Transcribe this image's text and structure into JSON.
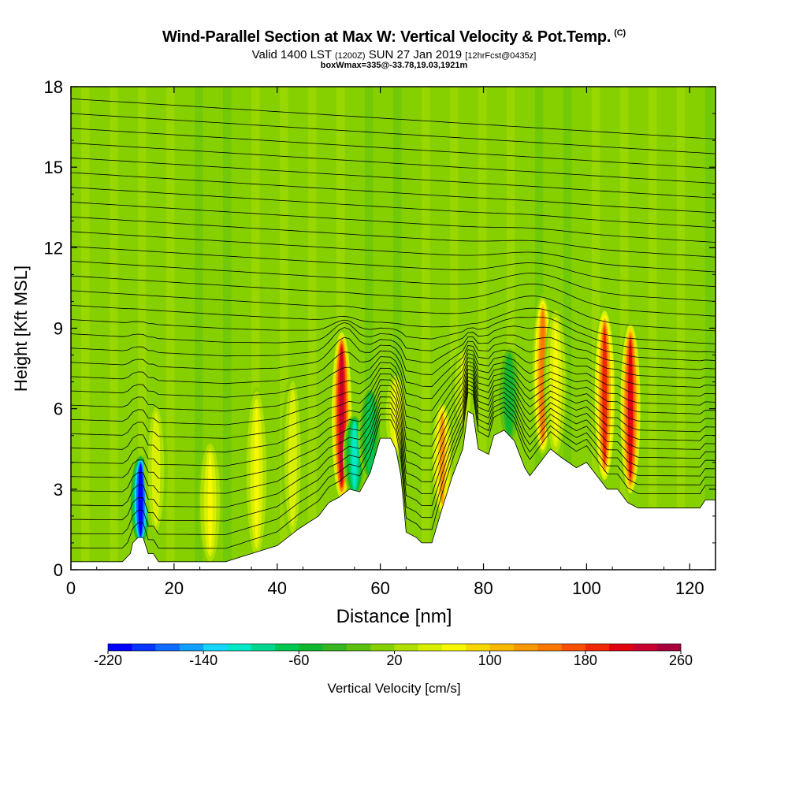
{
  "header": {
    "title": "Wind-Parallel Section at Max W: Vertical Velocity & Pot.Temp.",
    "title_tag": "(C)",
    "subtitle_pre": "Valid 1400 LST",
    "subtitle_mid": "(1200Z)",
    "subtitle_post": "SUN 27 Jan 2019",
    "subtitle_tag": "[12hrFcst@0435z]",
    "note": "boxWmax=335@-33.78,19.03,1921m"
  },
  "chart_data": {
    "type": "heatmap",
    "xlabel": "Distance [nm]",
    "ylabel": "Height [Kft MSL]",
    "xlim": [
      0,
      125
    ],
    "ylim": [
      0,
      18
    ],
    "x_ticks": [
      0,
      20,
      40,
      60,
      80,
      100,
      120
    ],
    "y_ticks": [
      0,
      3,
      6,
      9,
      12,
      15,
      18
    ],
    "colorbar": {
      "label": "Vertical Velocity [cm/s]",
      "min": -220,
      "max": 260,
      "step": 20,
      "tick_labels": [
        "-220",
        "-140",
        "-60",
        "20",
        "100",
        "180",
        "260"
      ],
      "tick_values": [
        -220,
        -140,
        -60,
        20,
        100,
        180,
        260
      ],
      "colors": [
        "#0000ff",
        "#0a35ff",
        "#0f6bff",
        "#12a0ff",
        "#14d6ff",
        "#00e8c8",
        "#00d890",
        "#00c850",
        "#10b830",
        "#35b520",
        "#5cc010",
        "#86d000",
        "#b0e000",
        "#d8f000",
        "#f8f800",
        "#f8d800",
        "#f8b800",
        "#f89800",
        "#f87800",
        "#f85000",
        "#f02800",
        "#e00010",
        "#c80030",
        "#a8003c"
      ]
    },
    "background_w": 10,
    "updrafts": [
      {
        "x": 13.5,
        "w": -210,
        "y_top": 4.0,
        "y_bottom": 1.0
      },
      {
        "x": 16.5,
        "w": 50,
        "y_top": 6.0,
        "y_bottom": 1.5
      },
      {
        "x": 27,
        "w": 70,
        "y_top": 4.5,
        "y_bottom": 0.5
      },
      {
        "x": 36,
        "w": 60,
        "y_top": 6.5,
        "y_bottom": 0.5
      },
      {
        "x": 43,
        "w": 50,
        "y_top": 7.0,
        "y_bottom": 1.0
      },
      {
        "x": 52.5,
        "w": 230,
        "y_top": 8.7,
        "y_bottom": 2.5
      },
      {
        "x": 55,
        "w": -120,
        "y_top": 5.5,
        "y_bottom": 3.0
      },
      {
        "x": 58,
        "w": -80,
        "y_top": 6.5,
        "y_bottom": 3.5
      },
      {
        "x": 63,
        "w": 60,
        "y_top": 7.0,
        "y_bottom": 2.0
      },
      {
        "x": 72,
        "w": 120,
        "y_top": 6.0,
        "y_bottom": 1.5
      },
      {
        "x": 76,
        "w": 40,
        "y_top": 8.0,
        "y_bottom": 5.5
      },
      {
        "x": 85,
        "w": -60,
        "y_top": 8.0,
        "y_bottom": 5.0
      },
      {
        "x": 91.5,
        "w": 150,
        "y_top": 10.0,
        "y_bottom": 4.5
      },
      {
        "x": 94,
        "w": 60,
        "y_top": 9.5,
        "y_bottom": 4.5
      },
      {
        "x": 103.5,
        "w": 180,
        "y_top": 9.5,
        "y_bottom": 3.5
      },
      {
        "x": 108.5,
        "w": 200,
        "y_top": 9.0,
        "y_bottom": 3.0
      }
    ],
    "terrain": [
      [
        0,
        0.3
      ],
      [
        10,
        0.3
      ],
      [
        11.5,
        0.6
      ],
      [
        12,
        1.0
      ],
      [
        13,
        1.2
      ],
      [
        14,
        1.2
      ],
      [
        15,
        0.6
      ],
      [
        16,
        0.6
      ],
      [
        17,
        0.3
      ],
      [
        30,
        0.3
      ],
      [
        35,
        0.6
      ],
      [
        40,
        0.9
      ],
      [
        44,
        1.5
      ],
      [
        48,
        2.0
      ],
      [
        50,
        2.5
      ],
      [
        52,
        2.7
      ],
      [
        54,
        3.0
      ],
      [
        56,
        2.9
      ],
      [
        58,
        3.6
      ],
      [
        60,
        4.9
      ],
      [
        62,
        4.9
      ],
      [
        63,
        4.5
      ],
      [
        64,
        3.5
      ],
      [
        65,
        1.4
      ],
      [
        67,
        1.2
      ],
      [
        68,
        1.0
      ],
      [
        70,
        1.0
      ],
      [
        72,
        2.3
      ],
      [
        74,
        3.5
      ],
      [
        76,
        4.5
      ],
      [
        77,
        5.9
      ],
      [
        78,
        5.8
      ],
      [
        79,
        4.5
      ],
      [
        81,
        4.3
      ],
      [
        82,
        5.0
      ],
      [
        84,
        5.2
      ],
      [
        86,
        4.8
      ],
      [
        88,
        3.8
      ],
      [
        89,
        3.5
      ],
      [
        91,
        4.0
      ],
      [
        93,
        4.5
      ],
      [
        95,
        4.2
      ],
      [
        98,
        3.8
      ],
      [
        100,
        4.0
      ],
      [
        102,
        3.5
      ],
      [
        104,
        3.0
      ],
      [
        106,
        3.0
      ],
      [
        108,
        2.5
      ],
      [
        110,
        2.3
      ],
      [
        122,
        2.3
      ],
      [
        123,
        2.6
      ],
      [
        125,
        2.6
      ]
    ]
  }
}
